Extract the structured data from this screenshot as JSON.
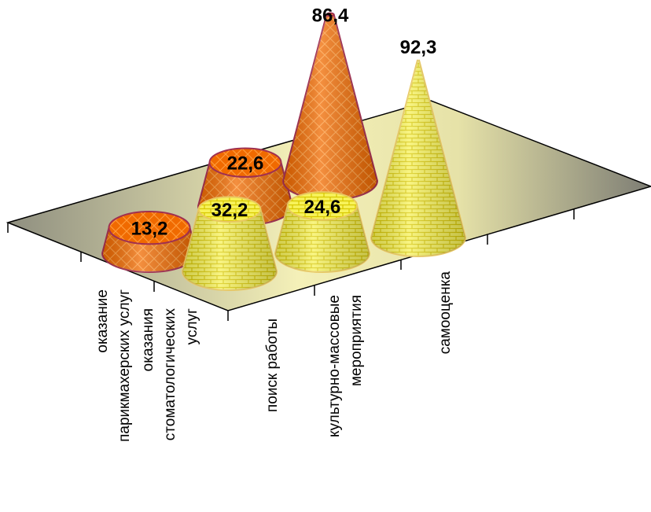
{
  "chart_data": {
    "type": "cone3d",
    "categories": [
      [
        "оказание",
        "парикмахерских услуг"
      ],
      [
        "оказания",
        "стоматологических",
        "услуг"
      ],
      [
        "поиск работы"
      ],
      [
        "культурно-массовые",
        "мероприятия"
      ],
      [
        "самооценка"
      ]
    ],
    "series": [
      {
        "color": "#f06a00",
        "values": [
          13.2,
          22.6,
          86.4,
          null,
          null
        ],
        "value_labels": [
          "13,2",
          "22,6",
          "86,4",
          null,
          null
        ]
      },
      {
        "color": "#f2ee3a",
        "values": [
          null,
          32.2,
          24.6,
          92.3,
          null
        ],
        "value_labels": [
          null,
          "32,2",
          "24,6",
          "92,3",
          null
        ]
      }
    ]
  }
}
